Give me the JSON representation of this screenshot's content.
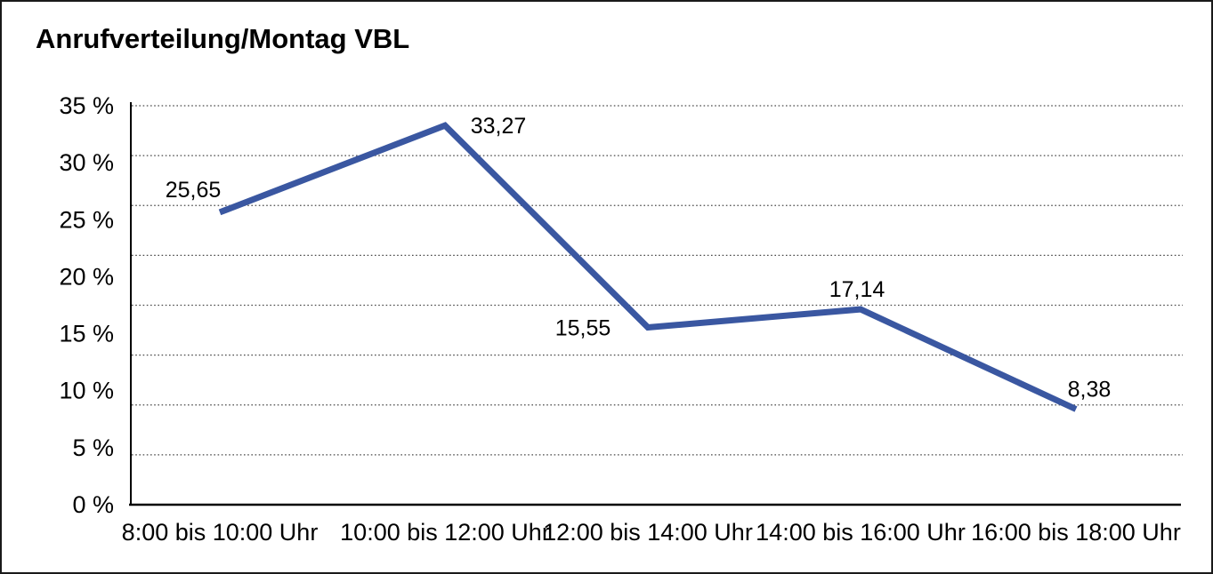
{
  "chart_data": {
    "type": "line",
    "title": "Anrufverteilung/Montag VBL",
    "categories": [
      "8:00 bis 10:00 Uhr",
      "10:00 bis 12:00 Uhr",
      "12:00 bis 14:00 Uhr",
      "14:00 bis 16:00 Uhr",
      "16:00 bis 18:00 Uhr"
    ],
    "series": [
      {
        "name": "Anrufverteilung Montag VBL",
        "values": [
          25.65,
          33.27,
          15.55,
          17.14,
          8.38
        ],
        "value_labels": [
          "25,65",
          "33,27",
          "15,55",
          "17,14",
          "8,38"
        ]
      }
    ],
    "xlabel": "",
    "ylabel": "",
    "ylim": [
      0,
      35
    ],
    "ytick_step": 5,
    "ytick_labels": [
      "35 %",
      "30 %",
      "25 %",
      "20 %",
      "15 %",
      "10 %",
      "5 %",
      "0 %"
    ],
    "grid": "horizontal-dotted",
    "gridline_count": 9,
    "legend_position": "none",
    "line_color": "#3A57A1",
    "axis_color": "#000000",
    "gridline_color": "#4a4a4a",
    "text_color": "#000000",
    "background_color": "#ffffff"
  }
}
